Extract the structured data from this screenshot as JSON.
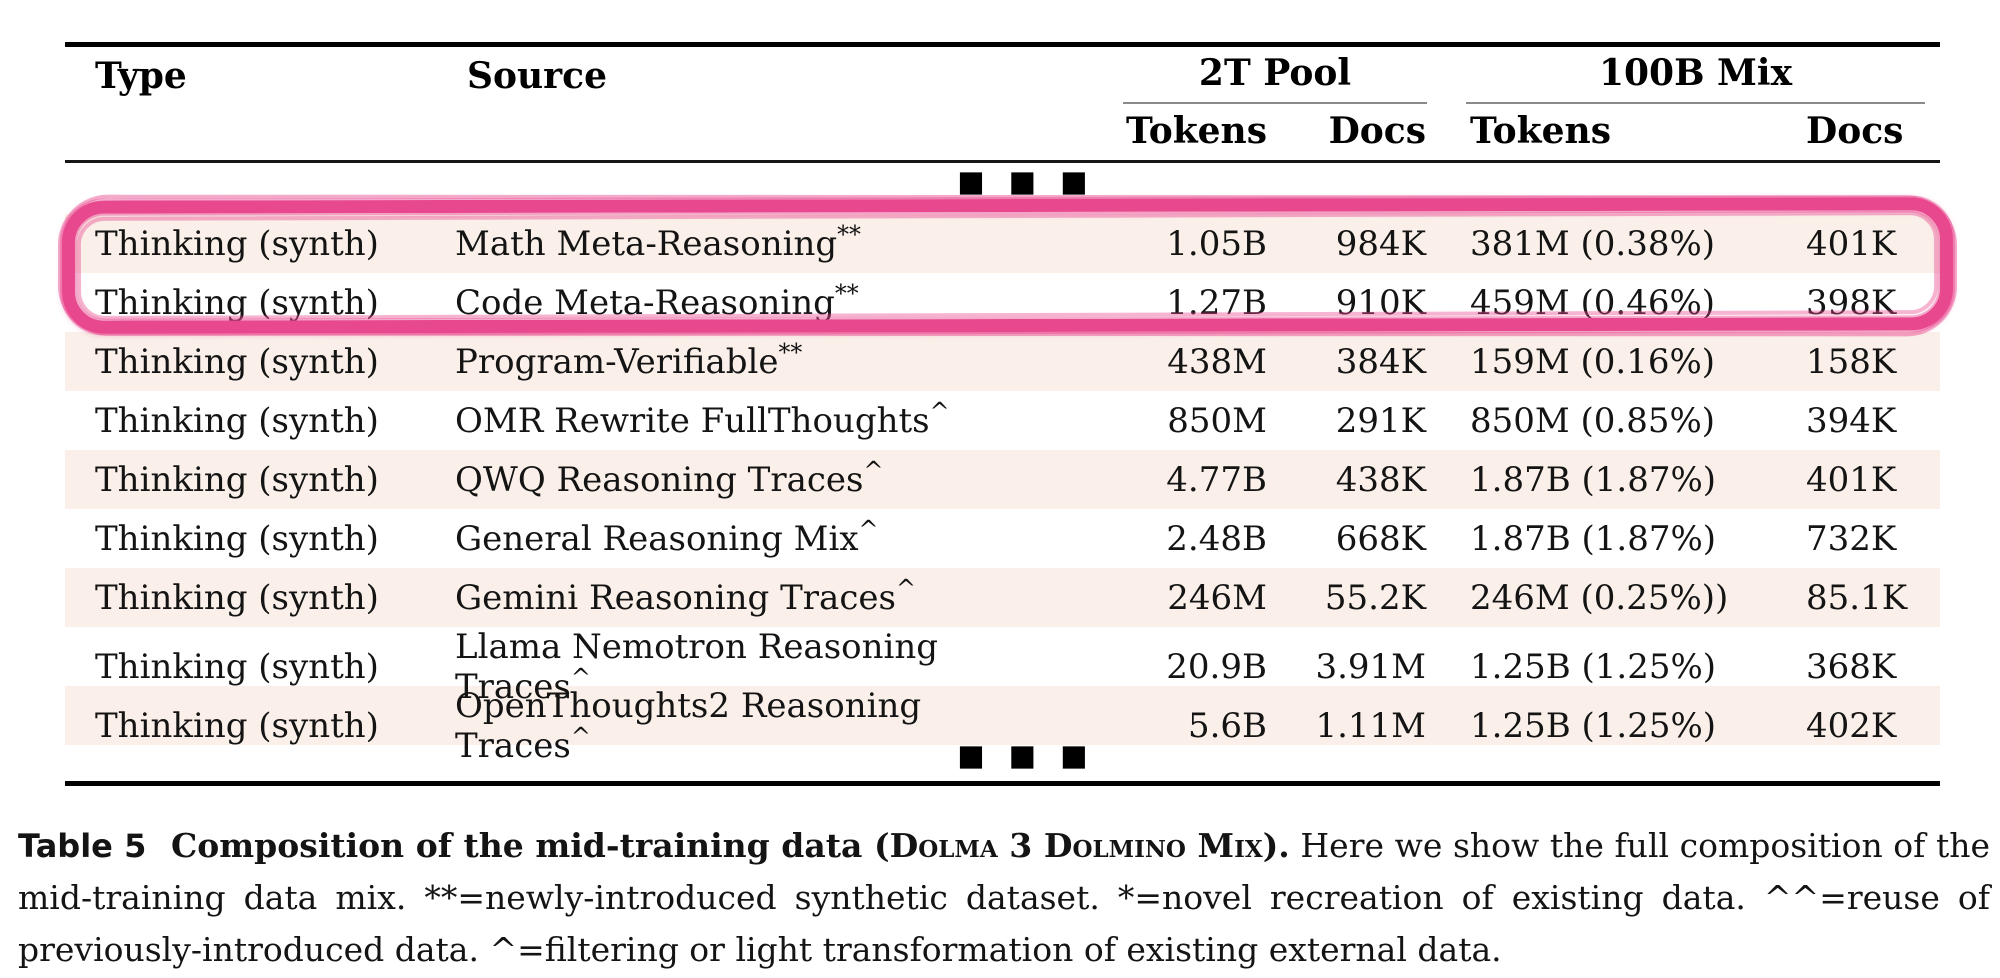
{
  "table": {
    "header": {
      "type": "Type",
      "source": "Source",
      "group_2t_pool": "2T Pool",
      "group_100b_mix": "100B Mix",
      "tokens_2t": "Tokens",
      "docs_2t": "Docs",
      "tokens_100b": "Tokens",
      "docs_100b": "Docs"
    },
    "truncation_marker": "■■■",
    "rows": [
      {
        "type": "Thinking (synth)",
        "source": "Math Meta-Reasoning",
        "marker": "**",
        "t2_tokens": "1.05B",
        "t2_docs": "984K",
        "mix_tokens": "381M (0.38%)",
        "mix_docs": "401K"
      },
      {
        "type": "Thinking (synth)",
        "source": "Code Meta-Reasoning",
        "marker": "**",
        "t2_tokens": "1.27B",
        "t2_docs": "910K",
        "mix_tokens": "459M (0.46%)",
        "mix_docs": "398K"
      },
      {
        "type": "Thinking (synth)",
        "source": "Program-Verifiable",
        "marker": "**",
        "t2_tokens": "438M",
        "t2_docs": "384K",
        "mix_tokens": "159M (0.16%)",
        "mix_docs": "158K"
      },
      {
        "type": "Thinking (synth)",
        "source": "OMR Rewrite FullThoughts",
        "marker": "^",
        "t2_tokens": "850M",
        "t2_docs": "291K",
        "mix_tokens": "850M (0.85%)",
        "mix_docs": "394K"
      },
      {
        "type": "Thinking (synth)",
        "source": "QWQ Reasoning Traces",
        "marker": "^",
        "t2_tokens": "4.77B",
        "t2_docs": "438K",
        "mix_tokens": "1.87B (1.87%)",
        "mix_docs": "401K"
      },
      {
        "type": "Thinking (synth)",
        "source": "General Reasoning Mix",
        "marker": "^",
        "t2_tokens": "2.48B",
        "t2_docs": "668K",
        "mix_tokens": "1.87B (1.87%)",
        "mix_docs": "732K"
      },
      {
        "type": "Thinking (synth)",
        "source": "Gemini Reasoning Traces",
        "marker": "^",
        "t2_tokens": "246M",
        "t2_docs": "55.2K",
        "mix_tokens": "246M (0.25%))",
        "mix_docs": "85.1K"
      },
      {
        "type": "Thinking (synth)",
        "source": "Llama Nemotron Reasoning Traces",
        "marker": "^",
        "t2_tokens": "20.9B",
        "t2_docs": "3.91M",
        "mix_tokens": "1.25B (1.25%)",
        "mix_docs": "368K"
      },
      {
        "type": "Thinking (synth)",
        "source": "OpenThoughts2 Reasoning Traces",
        "marker": "^",
        "t2_tokens": "5.6B",
        "t2_docs": "1.11M",
        "mix_tokens": "1.25B (1.25%)",
        "mix_docs": "402K"
      }
    ]
  },
  "annotation": {
    "highlight_color": "#e8488e"
  },
  "colors": {
    "row_shade": "#faf0e9",
    "rule": "#000000",
    "group_underline": "#8a8a8a",
    "highlight_pink": "#e8488e"
  },
  "caption": {
    "label": "Table 5",
    "title_prefix": "Composition of the mid-training data (",
    "title_smallcaps": "Dolma 3 Dolmino Mix",
    "title_suffix": ").",
    "body": "Here we show the full composition of the mid-training data mix. **=newly-introduced synthetic dataset. *=novel recreation of existing data. ^^=reuse of previously-introduced data. ^=filtering or light transformation of existing external data."
  }
}
